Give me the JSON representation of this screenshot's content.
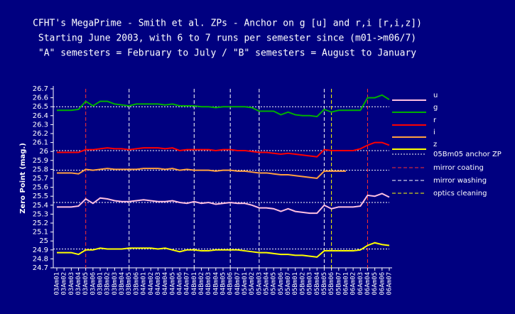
{
  "chart_data": {
    "type": "line",
    "title": "CFHT's MegaPrime - Smith et al. ZPs - Anchor on g [u] and r,i [r,i,z])",
    "subtitle": [
      "Starting June 2003, with 6 to 7 runs per semester since (m01->m06/7)",
      "\"A\" semesters = February to July / \"B\" semesters = August to January"
    ],
    "y_label": "Zero Point (mag.)",
    "categories": [
      "03Am01",
      "03Am02",
      "03Am03",
      "03Am04",
      "03Am05",
      "03Am06",
      "03Bm01",
      "03Bm02",
      "03Bm03",
      "03Bm04",
      "03Bm05",
      "03Bm06",
      "04Am01",
      "04Am02",
      "04Am03",
      "04Am04",
      "04Am05",
      "04Am06",
      "04Am07",
      "04Bm01",
      "04Bm02",
      "04Bm03",
      "04Bm04",
      "04Bm05",
      "04Bm06",
      "04Bm07",
      "05Am01",
      "05Am02",
      "05Am03",
      "05Am04",
      "05Am05",
      "05Am06",
      "05Am07",
      "05Bm01",
      "05Bm02",
      "05Bm03",
      "05Bm04",
      "05Bm05",
      "05Bm06",
      "05Bm07",
      "06Am01",
      "06Am02",
      "06Am03",
      "06Am04",
      "06Am05",
      "06Am06",
      "06Am07"
    ],
    "ylim": [
      24.7,
      26.7
    ],
    "yticks": [
      24.7,
      24.8,
      24.9,
      25,
      25.1,
      25.2,
      25.3,
      25.4,
      25.5,
      25.6,
      25.7,
      25.8,
      25.9,
      26,
      26.1,
      26.2,
      26.3,
      26.4,
      26.5,
      26.6,
      26.7
    ],
    "series": [
      {
        "name": "u",
        "color": "#ffc0e0",
        "anchor": 25.43,
        "values": [
          25.38,
          25.38,
          25.38,
          25.39,
          25.47,
          25.42,
          25.48,
          25.47,
          25.45,
          25.44,
          25.44,
          25.45,
          25.46,
          25.45,
          25.44,
          25.44,
          25.45,
          25.43,
          25.42,
          25.44,
          25.42,
          25.43,
          25.41,
          25.42,
          25.43,
          25.42,
          25.42,
          25.4,
          25.37,
          25.37,
          25.36,
          25.33,
          25.36,
          25.33,
          25.32,
          25.31,
          25.31,
          25.4,
          25.36,
          25.38,
          25.38,
          25.38,
          25.39,
          25.51,
          25.5,
          25.53,
          25.49
        ]
      },
      {
        "name": "g",
        "color": "#00b000",
        "anchor": 26.5,
        "values": [
          26.46,
          26.46,
          26.46,
          26.47,
          26.56,
          26.51,
          26.56,
          26.56,
          26.53,
          26.52,
          26.51,
          26.53,
          26.53,
          26.53,
          26.53,
          26.52,
          26.53,
          26.51,
          26.51,
          26.51,
          26.5,
          26.5,
          26.49,
          26.5,
          26.5,
          26.5,
          26.5,
          26.49,
          26.45,
          26.45,
          26.45,
          26.41,
          26.44,
          26.41,
          26.4,
          26.4,
          26.39,
          26.47,
          26.44,
          26.46,
          26.46,
          26.46,
          26.46,
          26.6,
          26.6,
          26.63,
          26.58
        ]
      },
      {
        "name": "r",
        "color": "#ff0000",
        "anchor": 26.01,
        "values": [
          25.99,
          25.99,
          25.99,
          25.99,
          26.02,
          26.02,
          26.03,
          26.04,
          26.03,
          26.03,
          26.02,
          26.03,
          26.04,
          26.04,
          26.04,
          26.03,
          26.04,
          26.01,
          26.02,
          26.02,
          26.02,
          26.02,
          26.01,
          26.02,
          26.02,
          26.01,
          26.01,
          26.0,
          25.99,
          25.99,
          25.98,
          25.97,
          25.98,
          25.97,
          25.96,
          25.95,
          25.94,
          26.02,
          26.01,
          26.01,
          26.01,
          26.01,
          26.03,
          26.07,
          26.1,
          26.1,
          26.07
        ]
      },
      {
        "name": "i",
        "color": "#ffa040",
        "anchor": 25.79,
        "values": [
          25.76,
          25.76,
          25.76,
          25.75,
          25.8,
          25.79,
          25.8,
          25.81,
          25.8,
          25.8,
          25.8,
          25.8,
          25.81,
          25.81,
          25.81,
          25.8,
          25.81,
          25.79,
          25.8,
          25.79,
          25.79,
          25.79,
          25.78,
          25.79,
          25.79,
          25.78,
          25.78,
          25.77,
          25.76,
          25.76,
          25.75,
          25.74,
          25.74,
          25.73,
          25.72,
          25.71,
          25.7,
          25.78,
          25.78,
          25.78,
          25.78,
          null,
          null,
          null,
          null,
          null,
          null
        ]
      },
      {
        "name": "z",
        "color": "#ffff00",
        "anchor": 24.91,
        "values": [
          24.87,
          24.87,
          24.87,
          24.85,
          24.9,
          24.9,
          24.92,
          24.91,
          24.91,
          24.91,
          24.92,
          24.92,
          24.92,
          24.92,
          24.91,
          24.92,
          24.9,
          24.88,
          24.9,
          24.9,
          24.89,
          24.89,
          24.9,
          24.9,
          24.9,
          24.9,
          24.89,
          24.88,
          24.87,
          24.87,
          24.86,
          24.85,
          24.85,
          24.84,
          24.84,
          24.83,
          24.82,
          24.89,
          24.89,
          24.89,
          24.89,
          24.89,
          24.9,
          24.95,
          24.98,
          24.96,
          24.95
        ]
      }
    ],
    "anchor_label": "05Bm05 anchor ZP",
    "anchor_color": "#ffffff",
    "events": [
      {
        "name": "mirror coating",
        "color": "#ff3030",
        "at": [
          "03Am05",
          "06Am04"
        ]
      },
      {
        "name": "mirror washing",
        "color": "#ffffff",
        "at": [
          "03Bm05",
          "04Bm01",
          "04Bm06",
          "05Am03",
          "05Bm05"
        ]
      },
      {
        "name": "optics cleaning",
        "color": "#ffff00",
        "at": [
          "05Bm06"
        ]
      }
    ]
  }
}
